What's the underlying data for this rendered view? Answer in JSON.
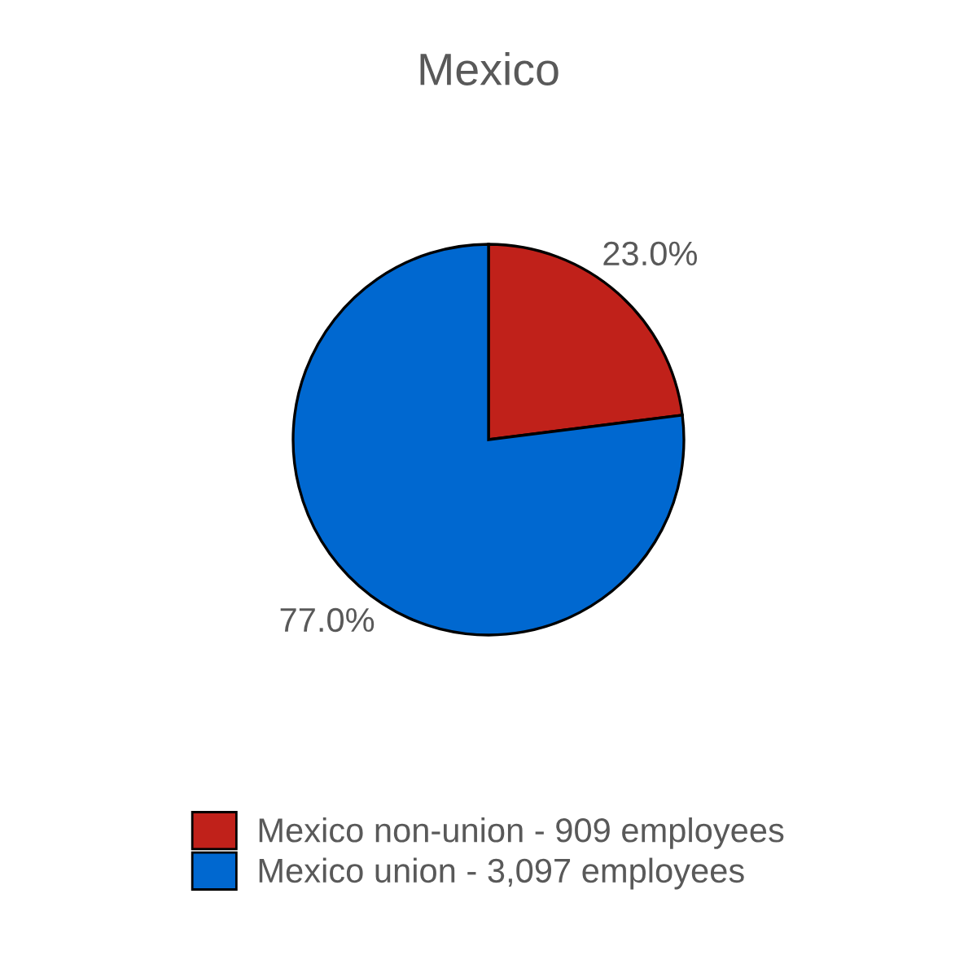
{
  "chart_data": {
    "type": "pie",
    "title": "Mexico",
    "categories": [
      "Mexico non-union - 909 employees",
      "Mexico union - 3,097 employees"
    ],
    "values": [
      23.0,
      77.0
    ],
    "colors": [
      "#c0211a",
      "#0068d0"
    ],
    "value_labels": [
      "23.0%",
      "77.0%"
    ],
    "legend": "bottom"
  }
}
